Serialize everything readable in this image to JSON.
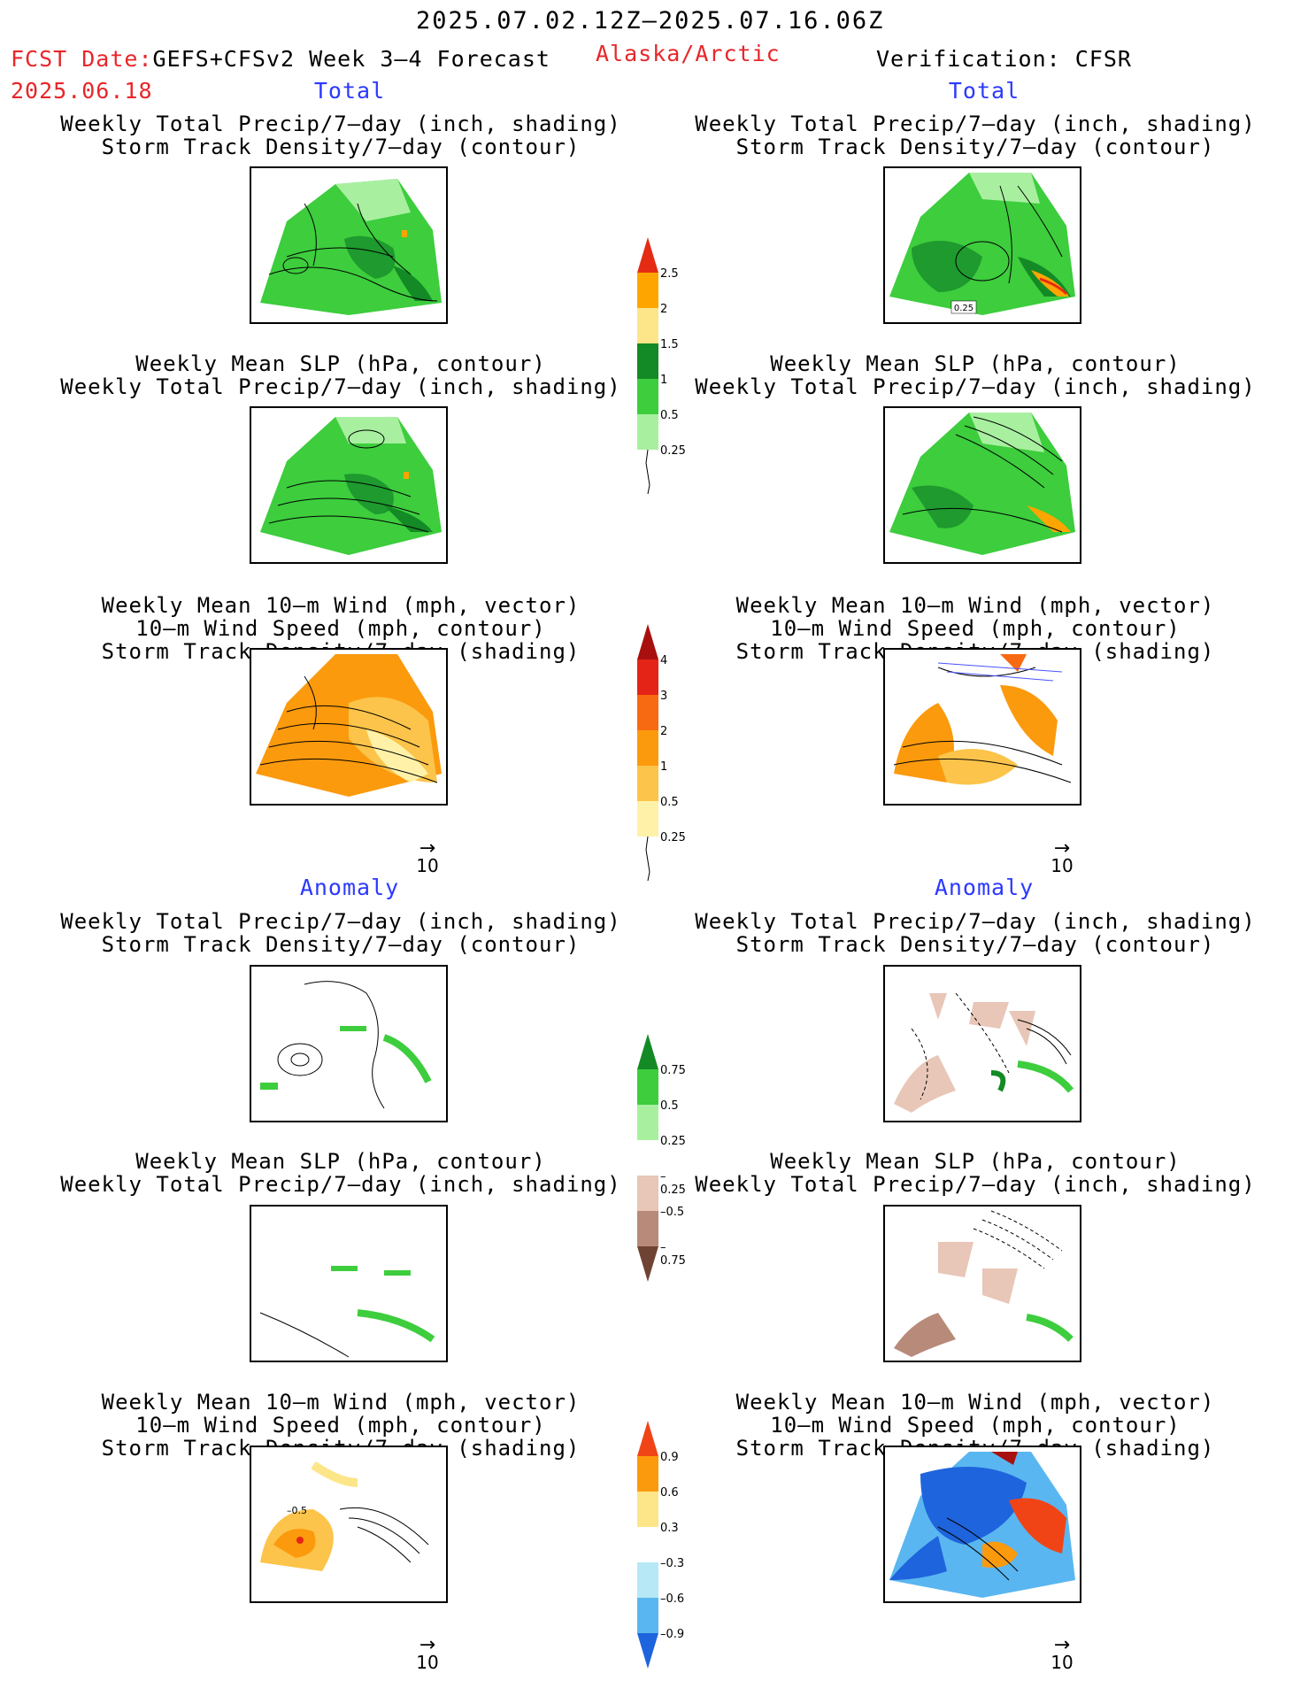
{
  "header": {
    "valid_period": "2025.07.02.12Z–2025.07.16.06Z",
    "fcst_date_label": "FCST Date:",
    "model_label": "GEFS+CFSv2 Week 3–4 Forecast",
    "region": "Alaska/Arctic",
    "fcst_date": "2025.06.18",
    "verification": "Verification: CFSR"
  },
  "sections": {
    "total": "Total",
    "anomaly": "Anomaly"
  },
  "panel_titles": {
    "precip_storm": [
      "Weekly Total Precip/7–day (inch, shading)",
      "Storm Track Density/7–day (contour)"
    ],
    "slp_precip": [
      "Weekly Mean SLP (hPa, contour)",
      "Weekly Total Precip/7–day (inch, shading)"
    ],
    "wind_storm": [
      "Weekly Mean 10–m Wind (mph, vector)",
      "10–m Wind Speed (mph, contour)",
      "Storm Track Density/7–day (shading)"
    ]
  },
  "vector_ref": "10",
  "panel_labels": {
    "right_total_precip_contour": "0.25",
    "left_anom_wind_contour": "–0.5"
  },
  "colorbars": {
    "total_precip": {
      "labels": [
        "2.5",
        "2",
        "1.5",
        "1",
        "0.5",
        "0.25"
      ],
      "colors": [
        "#e52b14",
        "#ffa500",
        "#fde68a",
        "#138a26",
        "#3dcd3d",
        "#a8f0a0"
      ]
    },
    "total_storm": {
      "labels": [
        "4",
        "3",
        "2",
        "1",
        "0.5",
        "0.25"
      ],
      "colors": [
        "#a8100f",
        "#e42416",
        "#f86a12",
        "#fb9a0d",
        "#fcc44a",
        "#fff2a8"
      ]
    },
    "anom_precip": {
      "labels": [
        "0.75",
        "0.5",
        "0.25",
        "–0.25",
        "–0.5",
        "–0.75"
      ],
      "colors": [
        "#138a26",
        "#3dcd3d",
        "#a8f0a0",
        "#ffffff",
        "#e8c6b8",
        "#b88a7a",
        "#6f4333"
      ]
    },
    "anom_storm": {
      "labels": [
        "0.9",
        "0.6",
        "0.3",
        "–0.3",
        "–0.6",
        "–0.9"
      ],
      "colors": [
        "#f04417",
        "#fb9a0d",
        "#fde68a",
        "#ffffff",
        "#b6e8f6",
        "#5ab6f0",
        "#1e64dc"
      ]
    }
  }
}
